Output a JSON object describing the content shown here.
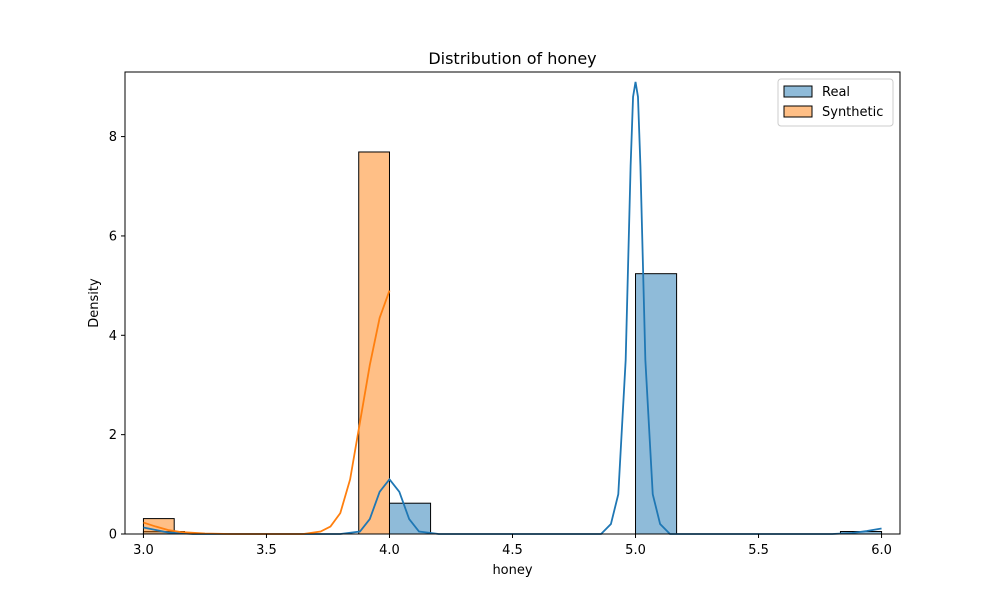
{
  "chart_data": {
    "type": "bar",
    "title": "Distribution of honey",
    "xlabel": "honey",
    "ylabel": "Density",
    "xlim": [
      2.925,
      6.075
    ],
    "ylim": [
      0,
      9.3
    ],
    "x_ticks": [
      3.0,
      3.5,
      4.0,
      4.5,
      5.0,
      5.5,
      6.0
    ],
    "x_tick_labels": [
      "3.0",
      "3.5",
      "4.0",
      "4.5",
      "5.0",
      "5.5",
      "6.0"
    ],
    "y_ticks": [
      0,
      2,
      4,
      6,
      8
    ],
    "y_tick_labels": [
      "0",
      "2",
      "4",
      "6",
      "8"
    ],
    "grid": false,
    "legend_position": "top-right",
    "series": [
      {
        "name": "Real",
        "color": "#1f77b4",
        "fill": "#1f77b4",
        "fill_opacity": 0.5,
        "histogram": [
          {
            "x0": 3.0,
            "x1": 3.167,
            "density": 0.05
          },
          {
            "x0": 4.0,
            "x1": 4.167,
            "density": 0.62
          },
          {
            "x0": 5.0,
            "x1": 5.167,
            "density": 5.24
          },
          {
            "x0": 5.833,
            "x1": 6.0,
            "density": 0.05
          }
        ],
        "kde": [
          [
            3.0,
            0.13
          ],
          [
            3.05,
            0.08
          ],
          [
            3.1,
            0.03
          ],
          [
            3.2,
            0.0
          ],
          [
            3.8,
            0.0
          ],
          [
            3.88,
            0.05
          ],
          [
            3.92,
            0.3
          ],
          [
            3.96,
            0.85
          ],
          [
            4.0,
            1.1
          ],
          [
            4.04,
            0.85
          ],
          [
            4.08,
            0.3
          ],
          [
            4.12,
            0.05
          ],
          [
            4.2,
            0.0
          ],
          [
            4.86,
            0.0
          ],
          [
            4.9,
            0.2
          ],
          [
            4.93,
            0.8
          ],
          [
            4.96,
            3.5
          ],
          [
            4.98,
            7.4
          ],
          [
            4.99,
            8.8
          ],
          [
            5.0,
            9.1
          ],
          [
            5.01,
            8.8
          ],
          [
            5.02,
            7.4
          ],
          [
            5.04,
            3.5
          ],
          [
            5.07,
            0.8
          ],
          [
            5.1,
            0.2
          ],
          [
            5.14,
            0.0
          ],
          [
            5.8,
            0.0
          ],
          [
            5.88,
            0.02
          ],
          [
            5.94,
            0.06
          ],
          [
            6.0,
            0.11
          ]
        ]
      },
      {
        "name": "Synthetic",
        "color": "#ff7f0e",
        "fill": "#ff7f0e",
        "fill_opacity": 0.5,
        "histogram": [
          {
            "x0": 3.0,
            "x1": 3.125,
            "density": 0.31
          },
          {
            "x0": 3.875,
            "x1": 4.0,
            "density": 7.69
          }
        ],
        "kde": [
          [
            3.0,
            0.23
          ],
          [
            3.05,
            0.15
          ],
          [
            3.1,
            0.08
          ],
          [
            3.15,
            0.04
          ],
          [
            3.25,
            0.01
          ],
          [
            3.35,
            0.0
          ],
          [
            3.65,
            0.0
          ],
          [
            3.72,
            0.05
          ],
          [
            3.76,
            0.15
          ],
          [
            3.8,
            0.42
          ],
          [
            3.84,
            1.1
          ],
          [
            3.88,
            2.25
          ],
          [
            3.92,
            3.4
          ],
          [
            3.96,
            4.35
          ],
          [
            4.0,
            4.9
          ]
        ]
      }
    ]
  }
}
